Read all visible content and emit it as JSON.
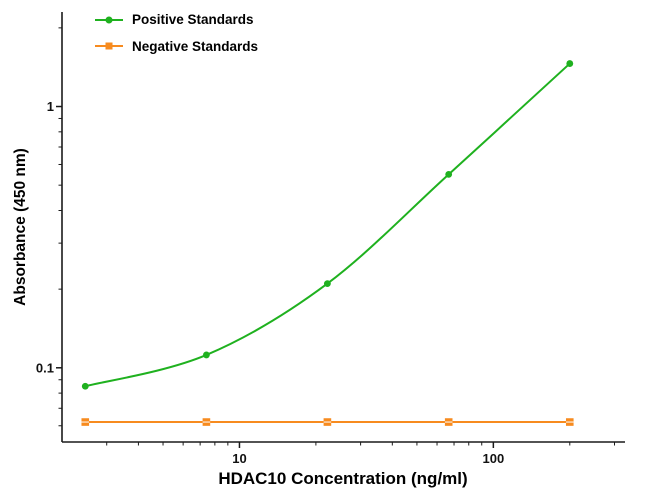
{
  "chart_data": {
    "type": "line",
    "title": "",
    "xlabel": "HDAC10 Concentration (ng/ml)",
    "ylabel": "Absorbance (450 nm)",
    "x_scale": "log",
    "y_scale": "log",
    "xlim": [
      2,
      330
    ],
    "ylim": [
      0.052,
      2.3
    ],
    "x_ticks": [
      10,
      100
    ],
    "y_ticks": [
      0.1,
      1
    ],
    "grid": false,
    "legend_position": "top-left",
    "axis_color": "#1a1a1a",
    "x": [
      2.47,
      7.41,
      22.2,
      66.7,
      200
    ],
    "series": [
      {
        "name": "Positive Standards",
        "color": "#1fb11f",
        "marker": "circle",
        "smooth": true,
        "values": [
          0.085,
          0.112,
          0.21,
          0.55,
          1.46
        ]
      },
      {
        "name": "Negative Standards",
        "color": "#f78b1f",
        "marker": "square",
        "smooth": false,
        "values": [
          0.062,
          0.062,
          0.062,
          0.062,
          0.062
        ]
      }
    ]
  }
}
